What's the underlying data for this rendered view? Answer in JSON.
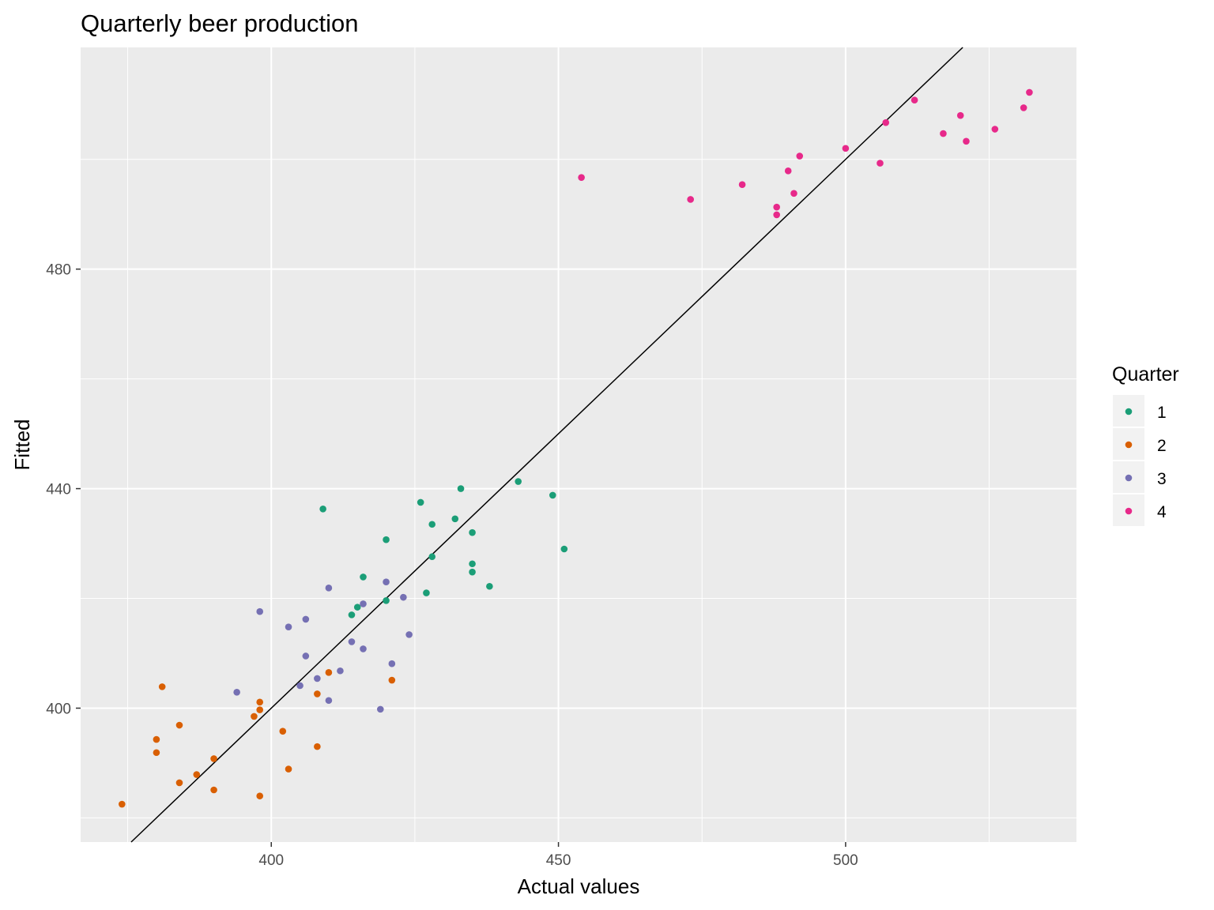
{
  "chart_data": {
    "type": "scatter",
    "title": "Quarterly beer production",
    "xlabel": "Actual values",
    "ylabel": "Fitted",
    "xlim": [
      366.8,
      540.2
    ],
    "ylim": [
      375.6,
      520.4
    ],
    "x_ticks": [
      400,
      450,
      500
    ],
    "y_ticks": [
      400,
      440,
      480
    ],
    "x_minor": [
      375,
      425,
      475,
      525
    ],
    "y_minor": [
      380,
      420,
      460,
      500
    ],
    "grid": true,
    "legend": {
      "title": "Quarter",
      "position": "right"
    },
    "reference_line": {
      "intercept": 0,
      "slope": 1
    },
    "colors": {
      "1": "#1b9e77",
      "2": "#d95f02",
      "3": "#7570b3",
      "4": "#e7298a",
      "panel": "#ebebeb",
      "grid": "#ffffff",
      "line": "#000000"
    },
    "series": [
      {
        "name": "1",
        "points": [
          [
            409,
            436.3
          ],
          [
            420,
            430.7
          ],
          [
            426,
            437.5
          ],
          [
            428,
            433.5
          ],
          [
            432,
            434.5
          ],
          [
            433,
            440
          ],
          [
            435,
            432
          ],
          [
            443,
            441.3
          ],
          [
            449,
            438.8
          ],
          [
            451,
            429
          ],
          [
            428,
            427.6
          ],
          [
            435,
            426.3
          ],
          [
            435,
            424.8
          ],
          [
            438,
            422.2
          ],
          [
            427,
            421
          ],
          [
            416,
            423.9
          ],
          [
            420,
            419.6
          ],
          [
            415,
            418.4
          ],
          [
            414,
            417
          ]
        ]
      },
      {
        "name": "2",
        "points": [
          [
            374,
            382.5
          ],
          [
            381,
            403.9
          ],
          [
            380,
            394.3
          ],
          [
            380,
            391.9
          ],
          [
            384,
            396.9
          ],
          [
            384,
            386.4
          ],
          [
            387,
            387.9
          ],
          [
            390,
            390.8
          ],
          [
            390,
            385.1
          ],
          [
            398,
            384
          ],
          [
            397,
            398.5
          ],
          [
            398,
            399.7
          ],
          [
            398,
            401.1
          ],
          [
            402,
            395.8
          ],
          [
            403,
            388.9
          ],
          [
            408,
            393
          ],
          [
            408,
            402.6
          ],
          [
            410,
            406.5
          ],
          [
            421,
            405.1
          ]
        ]
      },
      {
        "name": "3",
        "points": [
          [
            394,
            402.9
          ],
          [
            398,
            417.6
          ],
          [
            403,
            414.8
          ],
          [
            406,
            416.2
          ],
          [
            406,
            409.5
          ],
          [
            405,
            404.1
          ],
          [
            408,
            405.4
          ],
          [
            410,
            401.4
          ],
          [
            412,
            406.8
          ],
          [
            414,
            412.1
          ],
          [
            416,
            410.8
          ],
          [
            416,
            419
          ],
          [
            410,
            421.9
          ],
          [
            420,
            423
          ],
          [
            423,
            420.2
          ],
          [
            424,
            413.4
          ],
          [
            421,
            408.1
          ],
          [
            419,
            399.8
          ]
        ]
      },
      {
        "name": "4",
        "points": [
          [
            454,
            496.7
          ],
          [
            473,
            492.7
          ],
          [
            482,
            495.4
          ],
          [
            488,
            491.3
          ],
          [
            488,
            489.9
          ],
          [
            490,
            497.9
          ],
          [
            491,
            493.8
          ],
          [
            492,
            500.6
          ],
          [
            500,
            502
          ],
          [
            506,
            499.3
          ],
          [
            507,
            506.7
          ],
          [
            512,
            510.8
          ],
          [
            517,
            504.7
          ],
          [
            520,
            508
          ],
          [
            521,
            503.3
          ],
          [
            526,
            505.5
          ],
          [
            531,
            509.4
          ],
          [
            532,
            512.2
          ]
        ]
      }
    ]
  }
}
